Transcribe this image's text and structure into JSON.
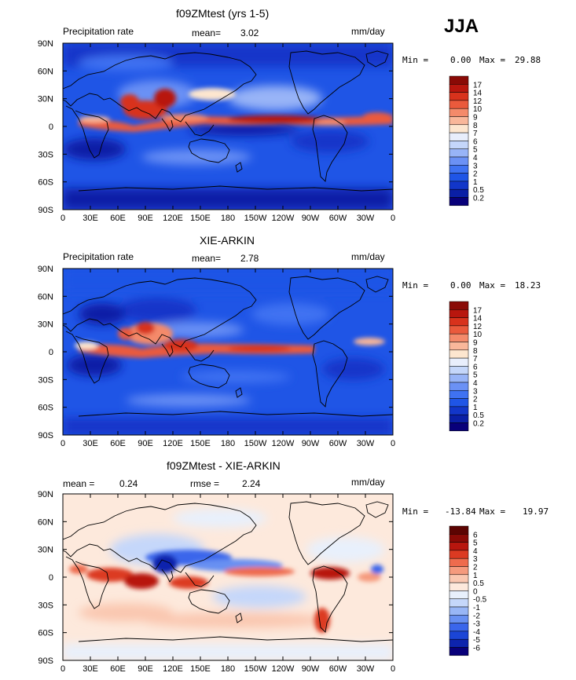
{
  "season": "JJA",
  "panel1": {
    "title": "f09ZMtest (yrs 1-5)",
    "var_label": "Precipitation rate",
    "stat_label": "mean=",
    "stat_value": "3.02",
    "units": "mm/day",
    "min_label": "Min =",
    "min_value": "0.00",
    "max_label": "Max =",
    "max_value": "29.88",
    "colorbar_labels": [
      "17",
      "14",
      "12",
      "10",
      "9",
      "8",
      "7",
      "6",
      "5",
      "4",
      "3",
      "2",
      "1",
      "0.5",
      "0.2"
    ]
  },
  "panel2": {
    "title": "XIE-ARKIN",
    "var_label": "Precipitation rate",
    "stat_label": "mean=",
    "stat_value": "2.78",
    "units": "mm/day",
    "min_label": "Min =",
    "min_value": "0.00",
    "max_label": "Max =",
    "max_value": "18.23",
    "colorbar_labels": [
      "17",
      "14",
      "12",
      "10",
      "9",
      "8",
      "7",
      "6",
      "5",
      "4",
      "3",
      "2",
      "1",
      "0.5",
      "0.2"
    ]
  },
  "panel3": {
    "title": "f09ZMtest - XIE-ARKIN",
    "mean_label": "mean =",
    "mean_value": "0.24",
    "rmse_label": "rmse =",
    "rmse_value": "2.24",
    "units": "mm/day",
    "min_label": "Min =",
    "min_value": "-13.84",
    "max_label": "Max =",
    "max_value": "19.97",
    "colorbar_labels": [
      "6",
      "5",
      "4",
      "3",
      "2",
      "1",
      "0.5",
      "0",
      "-0.5",
      "-1",
      "-2",
      "-3",
      "-4",
      "-5",
      "-6"
    ]
  },
  "lat_labels": [
    "90N",
    "60N",
    "30N",
    "0",
    "30S",
    "60S",
    "90S"
  ],
  "lon_labels": [
    "0",
    "30E",
    "60E",
    "90E",
    "120E",
    "150E",
    "180",
    "150W",
    "120W",
    "90W",
    "60W",
    "30W",
    "0"
  ],
  "colors": {
    "precip_scale": [
      "#08007a",
      "#0a1fa6",
      "#1236c9",
      "#1f55e6",
      "#3f72f2",
      "#6b91f5",
      "#98b4f7",
      "#c4d6fa",
      "#e8eefc",
      "#fde6cf",
      "#f9b79a",
      "#f48a6a",
      "#ea5a3c",
      "#d8321c",
      "#b8160e",
      "#8a0a06"
    ],
    "diff_scale": [
      "#08007a",
      "#0d24ad",
      "#1b45d6",
      "#3a66eb",
      "#6890f2",
      "#98b6f6",
      "#c5d7fa",
      "#e8f0fc",
      "#fde9dc",
      "#fac7b0",
      "#f59a7d",
      "#ee6b4d",
      "#dc3a22",
      "#b8160e",
      "#8a0a06",
      "#5c0402"
    ]
  }
}
